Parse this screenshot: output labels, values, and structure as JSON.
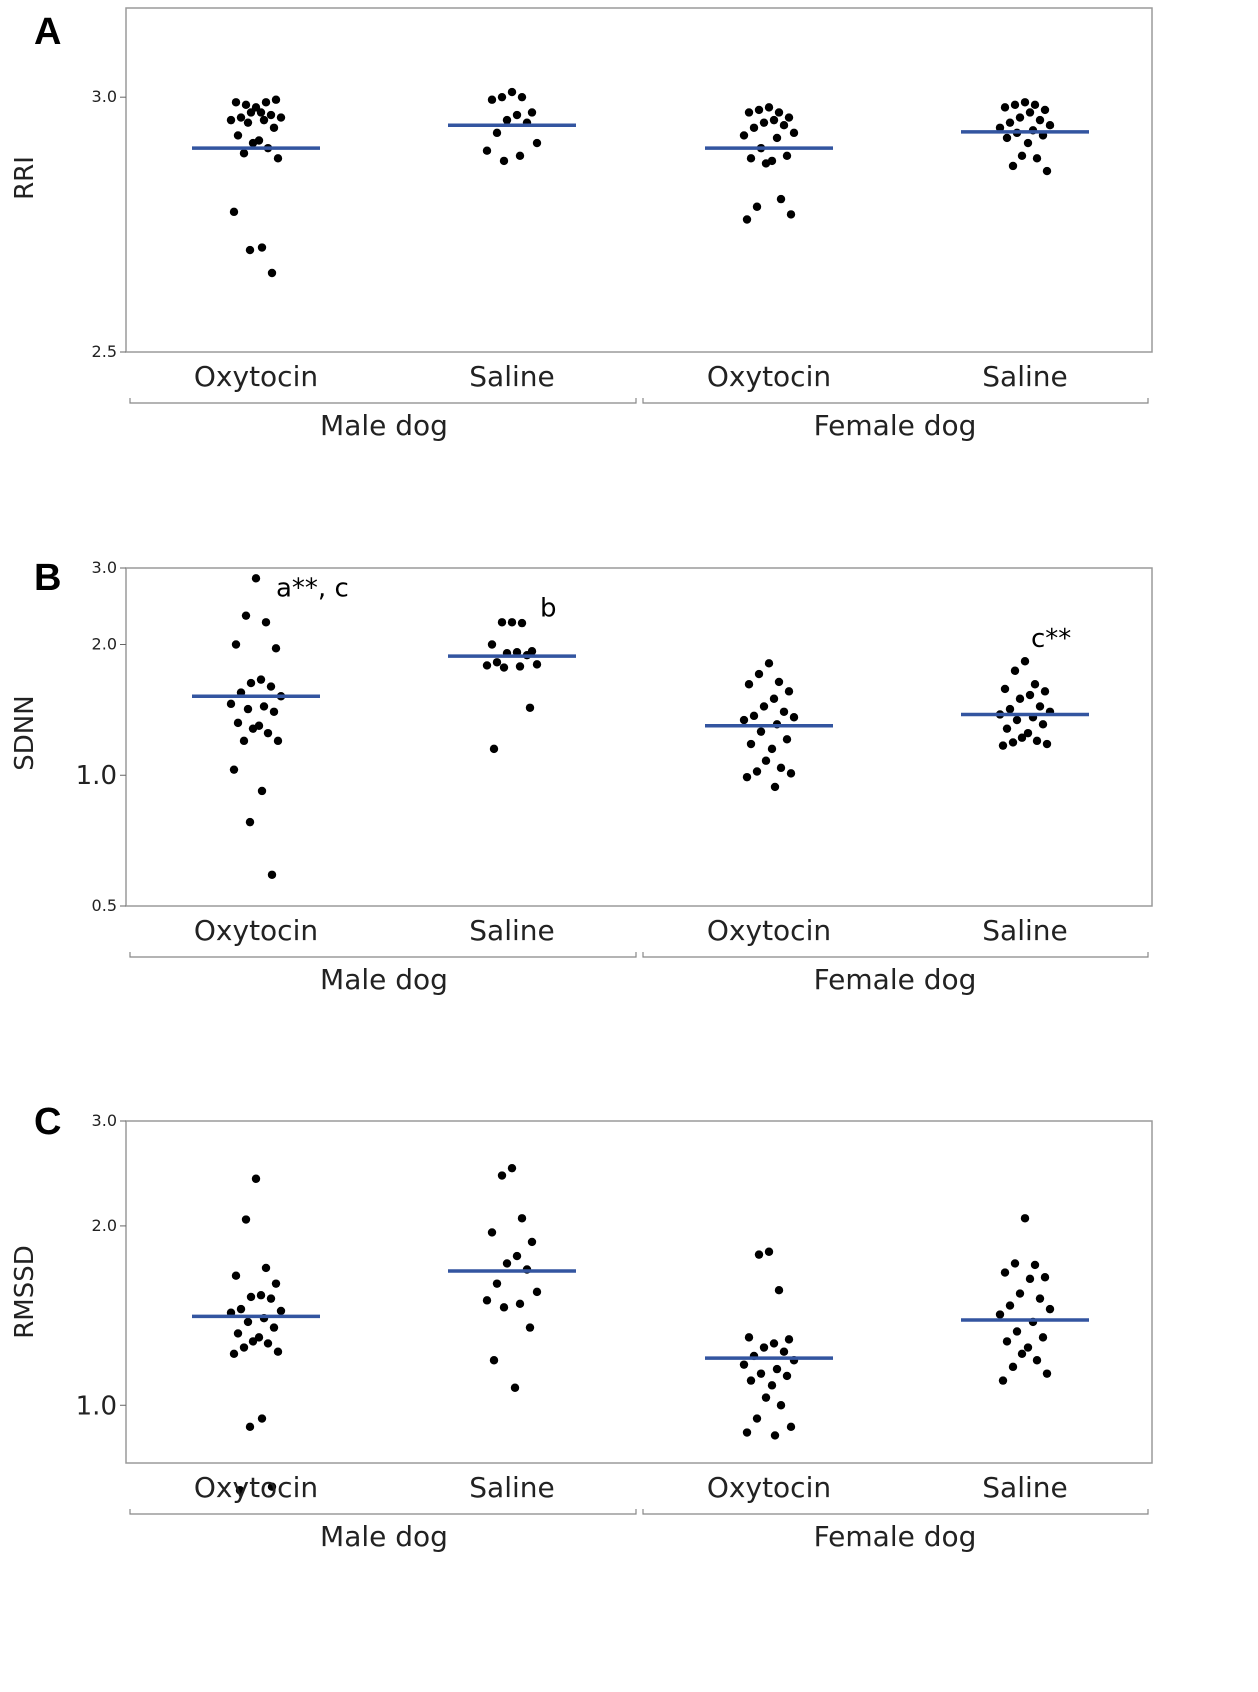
{
  "colors": {
    "mean_line": "#3355a0",
    "point": "#000000",
    "frame": "#9a9a9a"
  },
  "chart_data": [
    {
      "panel": "A",
      "type": "scatter",
      "ylabel": "RRI",
      "scale": "linear",
      "ylim": [
        2.5,
        3.175
      ],
      "yticks": [
        {
          "value": 3.0,
          "label": "3.0"
        },
        {
          "value": 2.5,
          "label": "2.5"
        }
      ],
      "groups": [
        "Male dog",
        "Female dog"
      ],
      "categories": [
        "Oxytocin",
        "Saline",
        "Oxytocin",
        "Saline"
      ],
      "series": [
        {
          "group": "Male dog",
          "name": "Oxytocin",
          "mean": 2.9,
          "points": [
            2.98,
            2.985,
            2.99,
            2.99,
            2.995,
            2.97,
            2.97,
            2.965,
            2.96,
            2.96,
            2.955,
            2.955,
            2.95,
            2.94,
            2.925,
            2.915,
            2.91,
            2.9,
            2.89,
            2.88,
            2.775,
            2.705,
            2.7,
            2.655
          ]
        },
        {
          "group": "Male dog",
          "name": "Saline",
          "mean": 2.945,
          "points": [
            3.01,
            3.0,
            3.0,
            2.995,
            2.97,
            2.965,
            2.955,
            2.95,
            2.93,
            2.91,
            2.895,
            2.885,
            2.875
          ]
        },
        {
          "group": "Female dog",
          "name": "Oxytocin",
          "mean": 2.9,
          "points": [
            2.98,
            2.975,
            2.97,
            2.97,
            2.96,
            2.955,
            2.95,
            2.945,
            2.94,
            2.93,
            2.925,
            2.92,
            2.9,
            2.885,
            2.88,
            2.875,
            2.87,
            2.8,
            2.785,
            2.77,
            2.76
          ]
        },
        {
          "group": "Female dog",
          "name": "Saline",
          "mean": 2.932,
          "points": [
            2.99,
            2.985,
            2.985,
            2.98,
            2.975,
            2.97,
            2.96,
            2.955,
            2.95,
            2.945,
            2.94,
            2.935,
            2.93,
            2.925,
            2.92,
            2.91,
            2.885,
            2.88,
            2.865,
            2.855
          ]
        }
      ],
      "annotations": []
    },
    {
      "panel": "B",
      "type": "scatter",
      "ylabel": "SDNN",
      "scale": "log",
      "ylim": [
        0.5,
        3.0
      ],
      "yticks": [
        {
          "value": 3.0,
          "label": "3.0"
        },
        {
          "value": 2.0,
          "label": "2.0"
        },
        {
          "value": 1.0,
          "label": "1.0"
        },
        {
          "value": 0.5,
          "label": "0.5"
        }
      ],
      "groups": [
        "Male dog",
        "Female dog"
      ],
      "categories": [
        "Oxytocin",
        "Saline",
        "Oxytocin",
        "Saline"
      ],
      "series": [
        {
          "group": "Male dog",
          "name": "Oxytocin",
          "mean": 1.52,
          "points": [
            2.84,
            2.33,
            2.25,
            2.0,
            1.96,
            1.66,
            1.63,
            1.6,
            1.55,
            1.52,
            1.46,
            1.44,
            1.42,
            1.4,
            1.32,
            1.3,
            1.28,
            1.25,
            1.2,
            1.2,
            1.03,
            0.92,
            0.78,
            0.59
          ]
        },
        {
          "group": "Male dog",
          "name": "Saline",
          "mean": 1.88,
          "points": [
            2.25,
            2.25,
            2.24,
            2.0,
            1.93,
            1.92,
            1.91,
            1.89,
            1.82,
            1.8,
            1.79,
            1.78,
            1.77,
            1.43,
            1.15
          ]
        },
        {
          "group": "Female dog",
          "name": "Oxytocin",
          "mean": 1.3,
          "points": [
            1.81,
            1.71,
            1.64,
            1.62,
            1.56,
            1.5,
            1.44,
            1.4,
            1.37,
            1.36,
            1.34,
            1.31,
            1.26,
            1.21,
            1.18,
            1.15,
            1.08,
            1.04,
            1.02,
            1.01,
            0.99,
            0.94
          ]
        },
        {
          "group": "Female dog",
          "name": "Saline",
          "mean": 1.38,
          "points": [
            1.83,
            1.74,
            1.62,
            1.58,
            1.56,
            1.53,
            1.5,
            1.44,
            1.42,
            1.4,
            1.38,
            1.36,
            1.34,
            1.31,
            1.28,
            1.25,
            1.22,
            1.2,
            1.19,
            1.18,
            1.17
          ]
        }
      ],
      "annotations": [
        {
          "category_index": 0,
          "text": "a**, c"
        },
        {
          "category_index": 1,
          "text": "b"
        },
        {
          "category_index": 3,
          "text": "c**"
        }
      ]
    },
    {
      "panel": "C",
      "type": "scatter",
      "ylabel": "RMSSD",
      "scale": "log",
      "ylim": [
        0.8,
        3.0
      ],
      "yticks": [
        {
          "value": 3.0,
          "label": "3.0"
        },
        {
          "value": 2.0,
          "label": "2.0"
        },
        {
          "value": 1.0,
          "label": "1.0"
        }
      ],
      "groups": [
        "Male dog",
        "Female dog"
      ],
      "categories": [
        "Oxytocin",
        "Saline",
        "Oxytocin",
        "Saline"
      ],
      "series": [
        {
          "group": "Male dog",
          "name": "Oxytocin",
          "mean": 1.41,
          "points": [
            2.4,
            2.05,
            1.7,
            1.65,
            1.6,
            1.53,
            1.52,
            1.51,
            1.45,
            1.44,
            1.43,
            1.4,
            1.38,
            1.35,
            1.32,
            1.3,
            1.28,
            1.27,
            1.25,
            1.23,
            1.22,
            0.95,
            0.92,
            0.73,
            0.72
          ]
        },
        {
          "group": "Male dog",
          "name": "Saline",
          "mean": 1.68,
          "points": [
            2.5,
            2.43,
            2.06,
            1.95,
            1.88,
            1.78,
            1.73,
            1.69,
            1.6,
            1.55,
            1.5,
            1.48,
            1.46,
            1.35,
            1.19,
            1.07
          ]
        },
        {
          "group": "Female dog",
          "name": "Oxytocin",
          "mean": 1.2,
          "points": [
            1.81,
            1.79,
            1.56,
            1.3,
            1.29,
            1.27,
            1.25,
            1.23,
            1.21,
            1.19,
            1.17,
            1.15,
            1.13,
            1.12,
            1.1,
            1.08,
            1.03,
            1.0,
            0.95,
            0.92,
            0.9,
            0.89
          ]
        },
        {
          "group": "Female dog",
          "name": "Saline",
          "mean": 1.39,
          "points": [
            2.06,
            1.73,
            1.72,
            1.67,
            1.64,
            1.63,
            1.54,
            1.51,
            1.47,
            1.45,
            1.42,
            1.38,
            1.33,
            1.3,
            1.28,
            1.25,
            1.22,
            1.19,
            1.16,
            1.13,
            1.1
          ]
        }
      ],
      "annotations": []
    }
  ]
}
